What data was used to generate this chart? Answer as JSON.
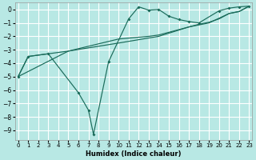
{
  "xlabel": "Humidex (Indice chaleur)",
  "background_color": "#b8e8e4",
  "grid_color": "#ffffff",
  "line_color": "#1a6b5a",
  "xlim": [
    -0.3,
    23.3
  ],
  "ylim": [
    -9.7,
    0.5
  ],
  "yticks": [
    0,
    -1,
    -2,
    -3,
    -4,
    -5,
    -6,
    -7,
    -8,
    -9
  ],
  "xticks": [
    0,
    1,
    2,
    3,
    4,
    5,
    6,
    7,
    8,
    9,
    10,
    11,
    12,
    13,
    14,
    15,
    16,
    17,
    18,
    19,
    20,
    21,
    22,
    23
  ],
  "curve_main_x": [
    0,
    1,
    3,
    6,
    7,
    7.5,
    9,
    11,
    12,
    13,
    14,
    15,
    16,
    17,
    18,
    20,
    21,
    22,
    23
  ],
  "curve_main_y": [
    -5.0,
    -3.5,
    -3.3,
    -6.2,
    -7.5,
    -9.3,
    -3.9,
    -0.7,
    0.2,
    -0.05,
    0.0,
    -0.5,
    -0.75,
    -0.9,
    -1.0,
    -0.1,
    0.1,
    0.2,
    0.25
  ],
  "curve_upper_x": [
    0,
    1,
    3,
    5,
    10,
    13,
    14,
    15,
    16,
    17,
    18,
    19,
    20,
    21,
    22,
    23
  ],
  "curve_upper_y": [
    -5.0,
    -3.5,
    -3.3,
    -3.1,
    -2.2,
    -2.0,
    -1.9,
    -1.7,
    -1.5,
    -1.3,
    -1.1,
    -0.95,
    -0.7,
    -0.3,
    -0.15,
    0.25
  ],
  "curve_diag_x": [
    0,
    5,
    10,
    14,
    17,
    19,
    21,
    22,
    23
  ],
  "curve_diag_y": [
    -5.0,
    -3.1,
    -2.5,
    -2.0,
    -1.3,
    -1.0,
    -0.3,
    -0.15,
    0.25
  ]
}
